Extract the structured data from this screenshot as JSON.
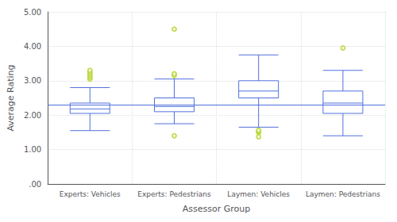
{
  "chart_data": {
    "type": "box",
    "categories": [
      "Experts: Vehicles",
      "Experts: Pedestrians",
      "Laymen: Vehicles",
      "Laymen: Pedestrians"
    ],
    "boxes": [
      {
        "whisker_low": 1.55,
        "q1": 2.05,
        "median": 2.18,
        "q3": 2.35,
        "whisker_high": 2.8,
        "outliers": [
          3.05,
          3.1,
          3.15,
          3.2,
          3.25,
          3.3
        ]
      },
      {
        "whisker_low": 1.75,
        "q1": 2.1,
        "median": 2.25,
        "q3": 2.5,
        "whisker_high": 3.05,
        "outliers": [
          3.15,
          3.2,
          1.4,
          4.5
        ]
      },
      {
        "whisker_low": 1.65,
        "q1": 2.5,
        "median": 2.7,
        "q3": 3.0,
        "whisker_high": 3.75,
        "outliers": [
          1.37,
          1.5,
          1.53,
          1.56
        ]
      },
      {
        "whisker_low": 1.4,
        "q1": 2.05,
        "median": 2.35,
        "q3": 2.7,
        "whisker_high": 3.3,
        "outliers": [
          3.95
        ]
      }
    ],
    "reference_line": 2.3,
    "xlabel": "Assessor Group",
    "ylabel": "Average Rating",
    "ylim": [
      0.0,
      5.0
    ],
    "yticks": [
      {
        "value": 0.0,
        "label": ".00"
      },
      {
        "value": 1.0,
        "label": "1.00"
      },
      {
        "value": 2.0,
        "label": "2.00"
      },
      {
        "value": 3.0,
        "label": "3.00"
      },
      {
        "value": 4.0,
        "label": "4.00"
      },
      {
        "value": 5.0,
        "label": "5.00"
      }
    ],
    "grid": true
  }
}
